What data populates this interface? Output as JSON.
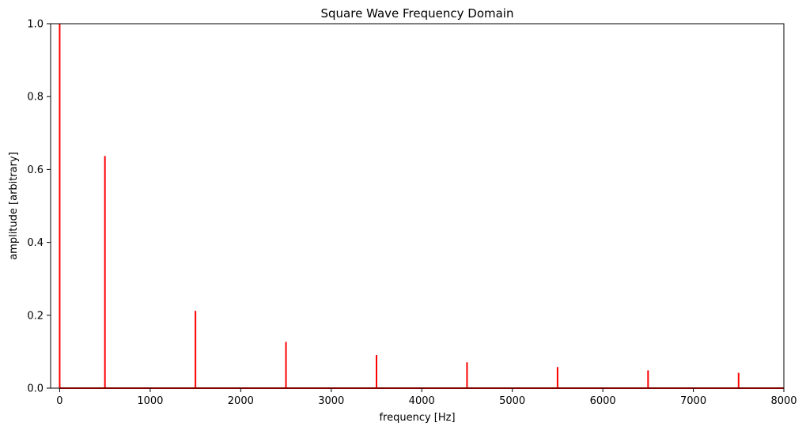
{
  "chart_data": {
    "type": "line",
    "title": "Square Wave Frequency Domain",
    "xlabel": "frequency [Hz]",
    "ylabel": "amplitude [arbitrary]",
    "xlim": [
      -100,
      8000
    ],
    "ylim": [
      0,
      1.0
    ],
    "x_ticks": [
      0,
      1000,
      2000,
      3000,
      4000,
      5000,
      6000,
      7000,
      8000
    ],
    "x_tick_labels": [
      "0",
      "1000",
      "2000",
      "3000",
      "4000",
      "5000",
      "6000",
      "7000",
      "8000"
    ],
    "y_ticks": [
      0.0,
      0.2,
      0.4,
      0.6,
      0.8,
      1.0
    ],
    "y_tick_labels": [
      "0.0",
      "0.2",
      "0.4",
      "0.6",
      "0.8",
      "1.0"
    ],
    "grid": false,
    "legend": "none",
    "series_color": "#ff0000",
    "spikes": [
      {
        "x": 0,
        "y": 1.0
      },
      {
        "x": 500,
        "y": 0.637
      },
      {
        "x": 1500,
        "y": 0.212
      },
      {
        "x": 2500,
        "y": 0.127
      },
      {
        "x": 3500,
        "y": 0.091
      },
      {
        "x": 4500,
        "y": 0.071
      },
      {
        "x": 5500,
        "y": 0.058
      },
      {
        "x": 6500,
        "y": 0.049
      },
      {
        "x": 7500,
        "y": 0.042
      }
    ],
    "baseline": {
      "x": [
        0,
        8000
      ],
      "y": 0.0
    }
  }
}
